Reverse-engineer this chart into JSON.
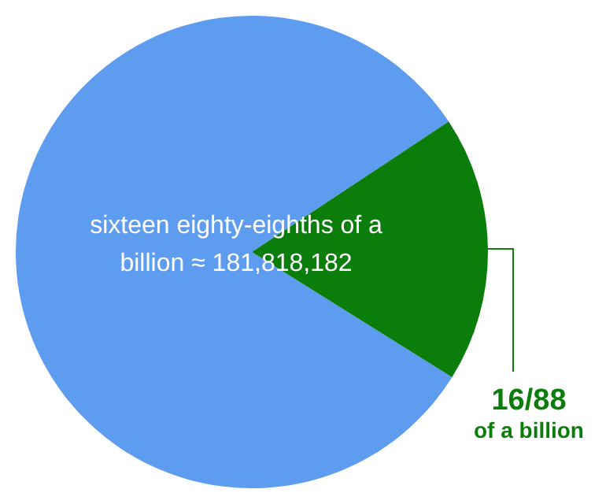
{
  "chart_data": {
    "type": "pie",
    "categories": [
      null,
      "16/88 of a billion"
    ],
    "values": [
      81.8,
      18.2
    ],
    "colors": [
      "#5e9cf0",
      "#0b7d0b"
    ],
    "annotations": [
      "sixteen eighty-eighths of a billion ≈ 181,818,182"
    ]
  }
}
